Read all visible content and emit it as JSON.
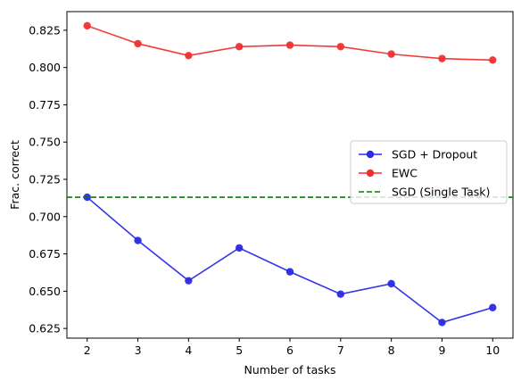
{
  "chart_data": {
    "type": "line",
    "title": "",
    "xlabel": "Number of tasks",
    "ylabel": "Frac. correct",
    "x": [
      2,
      3,
      4,
      5,
      6,
      7,
      8,
      9,
      10
    ],
    "xlim": [
      1.6,
      10.4
    ],
    "ylim": [
      0.6185,
      0.8375
    ],
    "xticks": [
      2,
      3,
      4,
      5,
      6,
      7,
      8,
      9,
      10
    ],
    "yticks": [
      0.625,
      0.65,
      0.675,
      0.7,
      0.725,
      0.75,
      0.775,
      0.8,
      0.825
    ],
    "ytick_labels": [
      "0.625",
      "0.650",
      "0.675",
      "0.700",
      "0.725",
      "0.750",
      "0.775",
      "0.800",
      "0.825"
    ],
    "grid": false,
    "legend_position": "center-right",
    "series": [
      {
        "name": "SGD + Dropout",
        "color": "#2a2ae8",
        "style": "line-marker",
        "values": [
          0.713,
          0.684,
          0.657,
          0.679,
          0.663,
          0.648,
          0.655,
          0.629,
          0.639
        ]
      },
      {
        "name": "EWC",
        "color": "#f03030",
        "style": "line-marker",
        "values": [
          0.828,
          0.816,
          0.808,
          0.814,
          0.815,
          0.814,
          0.809,
          0.806,
          0.805
        ]
      },
      {
        "name": "SGD (Single Task)",
        "color": "#008000",
        "style": "dashed-hline",
        "value": 0.713
      }
    ]
  }
}
